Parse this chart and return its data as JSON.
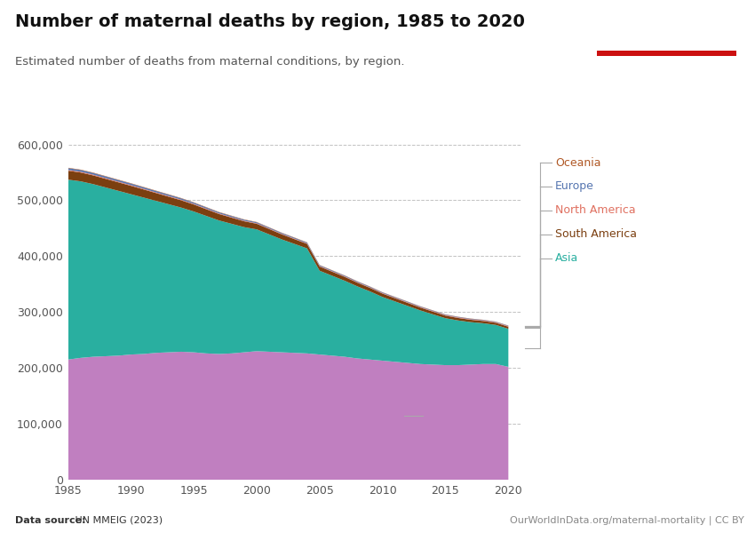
{
  "title": "Number of maternal deaths by region, 1985 to 2020",
  "subtitle": "Estimated number of deaths from maternal conditions, by region.",
  "datasource_bold": "Data source:",
  "datasource_rest": " UN MMEIG (2023)",
  "credit": "OurWorldInData.org/maternal-mortality | CC BY",
  "years": [
    1985,
    1986,
    1987,
    1988,
    1989,
    1990,
    1991,
    1992,
    1993,
    1994,
    1995,
    1996,
    1997,
    1998,
    1999,
    2000,
    2001,
    2002,
    2003,
    2004,
    2005,
    2006,
    2007,
    2008,
    2009,
    2010,
    2011,
    2012,
    2013,
    2014,
    2015,
    2016,
    2017,
    2018,
    2019,
    2020
  ],
  "regions": {
    "Africa": {
      "color": "#C07FC0",
      "values": [
        215000,
        218000,
        220000,
        221000,
        222000,
        224000,
        225000,
        227000,
        228000,
        229000,
        228000,
        226000,
        225000,
        226000,
        228000,
        230000,
        229000,
        228000,
        227000,
        226000,
        224000,
        222000,
        220000,
        217000,
        215000,
        213000,
        211000,
        209000,
        207000,
        206000,
        205000,
        205000,
        206000,
        207000,
        207000,
        202000
      ]
    },
    "Asia": {
      "color": "#29AFA0",
      "values": [
        322000,
        316000,
        309000,
        302000,
        295000,
        287000,
        280000,
        272000,
        265000,
        258000,
        252000,
        246000,
        239000,
        232000,
        224000,
        218000,
        210000,
        202000,
        195000,
        188000,
        150000,
        143000,
        136000,
        129000,
        122000,
        114000,
        108000,
        102000,
        96000,
        90000,
        84000,
        80000,
        76000,
        73000,
        70000,
        68000
      ]
    },
    "South America": {
      "color": "#7B3F10",
      "values": [
        16000,
        15800,
        15600,
        15400,
        15200,
        15000,
        14500,
        14000,
        13500,
        13000,
        12500,
        12000,
        11500,
        11000,
        10500,
        10000,
        9500,
        9000,
        8500,
        8000,
        7500,
        7200,
        6900,
        6600,
        6300,
        6000,
        5700,
        5400,
        5100,
        4800,
        4600,
        4400,
        4200,
        4000,
        3800,
        3700
      ]
    },
    "North America": {
      "color": "#E07060",
      "values": [
        1400,
        1400,
        1400,
        1350,
        1300,
        1300,
        1250,
        1200,
        1200,
        1150,
        1100,
        1100,
        1050,
        1000,
        1000,
        950,
        950,
        900,
        900,
        900,
        850,
        850,
        850,
        850,
        850,
        900,
        900,
        950,
        950,
        950,
        1000,
        1000,
        1000,
        1000,
        1000,
        1000
      ]
    },
    "Europe": {
      "color": "#5575B0",
      "values": [
        3200,
        3100,
        3000,
        2900,
        2800,
        2700,
        2600,
        2500,
        2400,
        2300,
        2200,
        2100,
        2000,
        1900,
        1800,
        1700,
        1600,
        1550,
        1500,
        1450,
        1400,
        1350,
        1300,
        1250,
        1200,
        1150,
        1100,
        1050,
        1000,
        950,
        900,
        880,
        860,
        840,
        820,
        800
      ]
    },
    "Oceania": {
      "color": "#B05825",
      "values": [
        700,
        690,
        680,
        670,
        660,
        650,
        640,
        630,
        620,
        610,
        600,
        590,
        580,
        570,
        560,
        550,
        540,
        530,
        520,
        510,
        500,
        490,
        480,
        470,
        460,
        450,
        440,
        430,
        420,
        410,
        400,
        390,
        380,
        370,
        360,
        350
      ]
    }
  },
  "ylim": [
    0,
    620000
  ],
  "yticks": [
    0,
    100000,
    200000,
    300000,
    400000,
    500000,
    600000
  ],
  "ytick_labels": [
    "0",
    "100,000",
    "200,000",
    "300,000",
    "400,000",
    "500,000",
    "600,000"
  ],
  "xticks": [
    1985,
    1990,
    1995,
    2000,
    2005,
    2010,
    2015,
    2020
  ],
  "background_color": "#FFFFFF",
  "grid_color": "#BBBBBB",
  "owid_box_color": "#1D3557",
  "owid_box_red": "#CC1111",
  "legend_labels": [
    "Oceania",
    "Europe",
    "North America",
    "South America",
    "Asia"
  ],
  "legend_colors": [
    "#B05825",
    "#5575B0",
    "#E07060",
    "#7B3F10",
    "#29AFA0"
  ],
  "africa_label_color": "#C07FC0"
}
